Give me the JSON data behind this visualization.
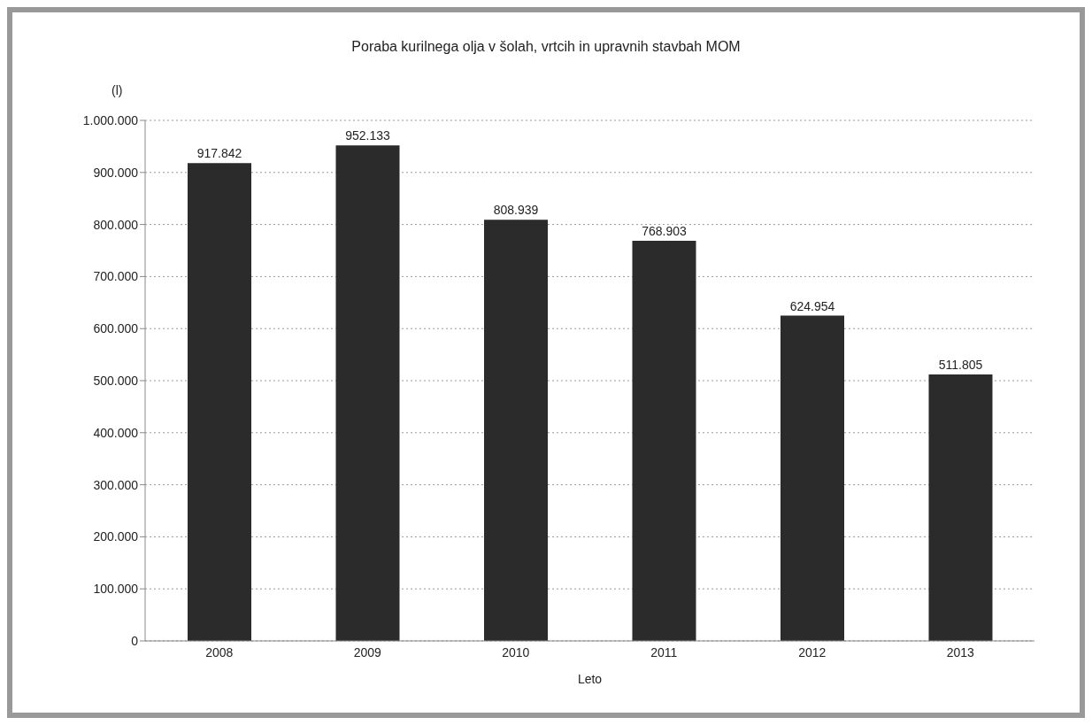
{
  "chart_data": {
    "type": "bar",
    "title": "Poraba kurilnega olja v šolah,  vrtcih in upravnih stavbah MOM",
    "ylabel": "(l)",
    "xlabel": "Leto",
    "categories": [
      "2008",
      "2009",
      "2010",
      "2011",
      "2012",
      "2013"
    ],
    "values": [
      917842,
      952133,
      808939,
      768903,
      624954,
      511805
    ],
    "value_labels": [
      "917.842",
      "952.133",
      "808.939",
      "768.903",
      "624.954",
      "511.805"
    ],
    "color": "#2b2b2b",
    "ylim": [
      0,
      1000000
    ],
    "yticks": [
      {
        "value": 0,
        "label": "0"
      },
      {
        "value": 100000,
        "label": "100.000"
      },
      {
        "value": 200000,
        "label": "200.000"
      },
      {
        "value": 300000,
        "label": "300.000"
      },
      {
        "value": 400000,
        "label": "400.000"
      },
      {
        "value": 500000,
        "label": "500.000"
      },
      {
        "value": 600000,
        "label": "600.000"
      },
      {
        "value": 700000,
        "label": "700.000"
      },
      {
        "value": 800000,
        "label": "800.000"
      },
      {
        "value": 900000,
        "label": "900.000"
      },
      {
        "value": 1000000,
        "label": "1.000.000"
      }
    ],
    "grid": "y"
  }
}
